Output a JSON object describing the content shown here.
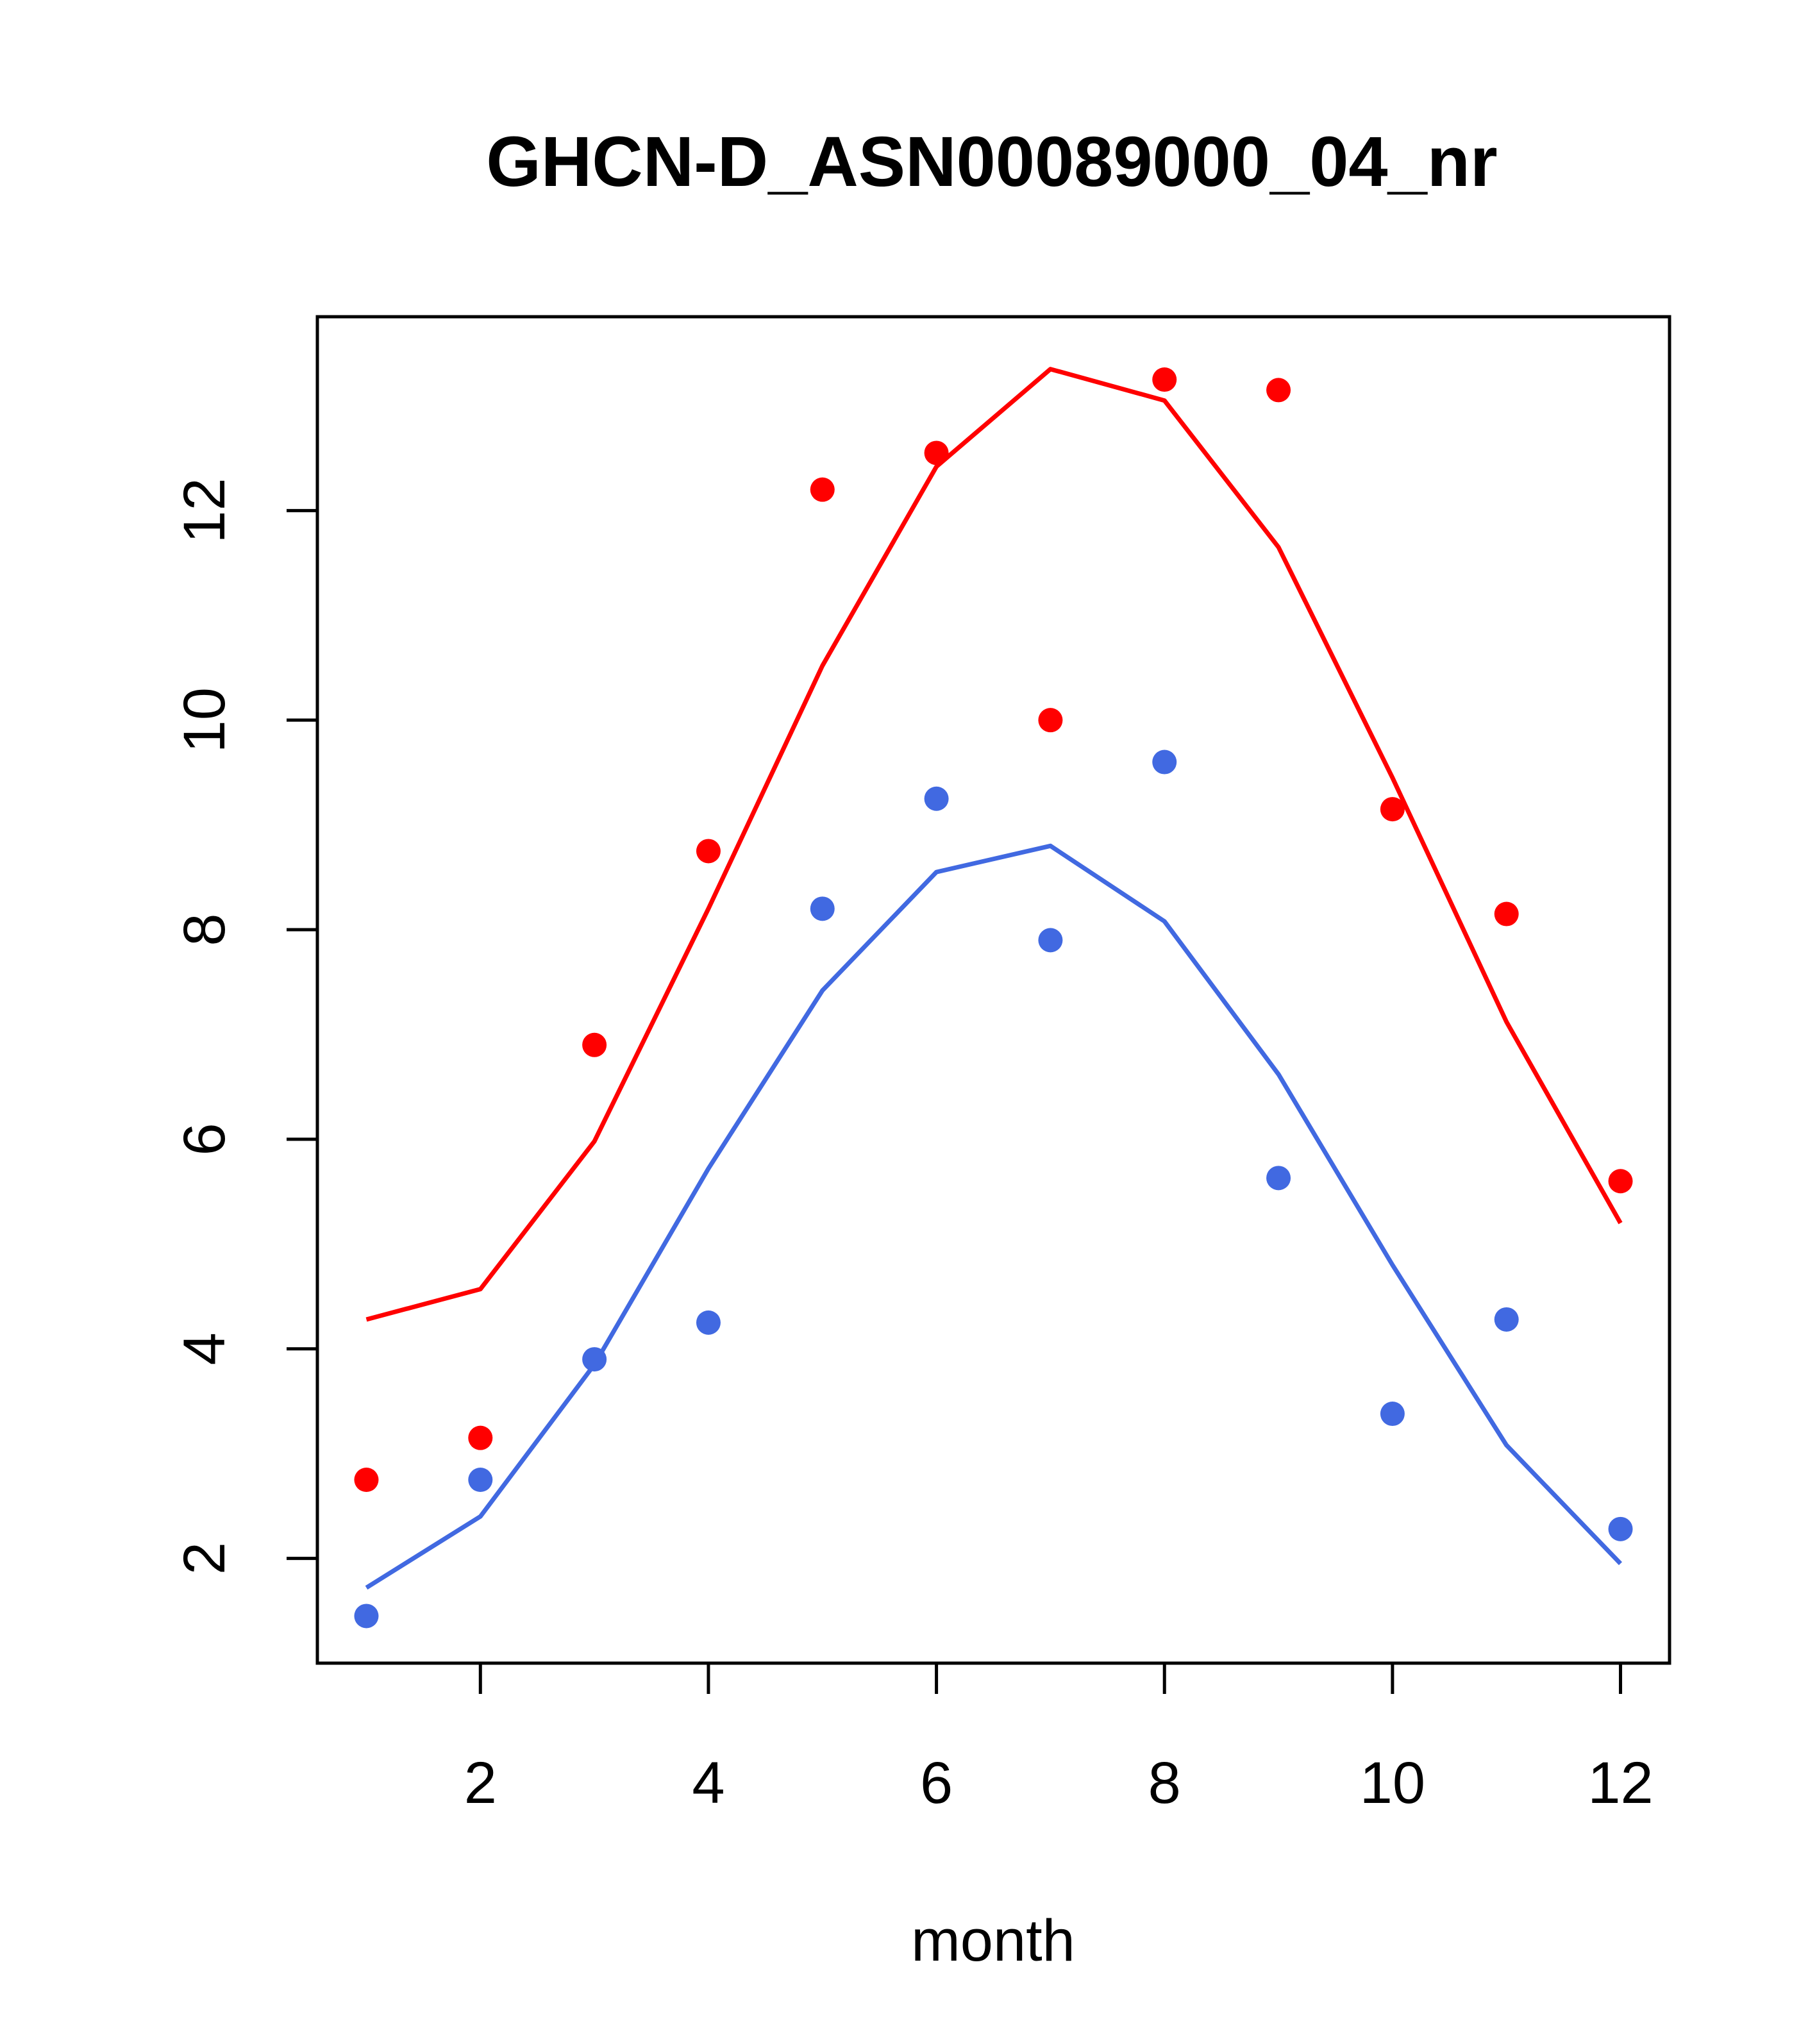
{
  "chart_data": {
    "type": "line",
    "title": "GHCN-D_ASN00089000_04_nr",
    "xlabel": "month",
    "ylabel": "",
    "xlim": [
      0.57,
      12.43
    ],
    "ylim": [
      1.0,
      13.85
    ],
    "x_ticks": [
      2,
      4,
      6,
      8,
      10,
      12
    ],
    "y_ticks": [
      2,
      4,
      6,
      8,
      10,
      12
    ],
    "grid": false,
    "legend": "none",
    "series": [
      {
        "color": "#ff0000",
        "x": [
          1,
          2,
          3,
          4,
          5,
          6,
          7,
          8,
          9,
          10,
          11,
          12
        ],
        "points": [
          2.75,
          3.15,
          6.9,
          8.75,
          12.2,
          12.55,
          10.0,
          13.25,
          13.15,
          9.15,
          8.15,
          5.6
        ],
        "line": [
          4.28,
          4.57,
          5.98,
          8.2,
          10.52,
          12.42,
          13.35,
          13.05,
          11.65,
          9.45,
          7.12,
          5.2
        ]
      },
      {
        "color": "#4169e1",
        "x": [
          1,
          2,
          3,
          4,
          5,
          6,
          7,
          8,
          9,
          10,
          11,
          12
        ],
        "points": [
          1.45,
          2.75,
          3.9,
          4.25,
          8.2,
          9.25,
          7.9,
          9.6,
          5.63,
          3.38,
          4.28,
          2.28
        ],
        "line": [
          1.72,
          2.4,
          3.85,
          5.72,
          7.42,
          8.55,
          8.8,
          8.08,
          6.62,
          4.8,
          3.08,
          1.95
        ]
      }
    ]
  }
}
